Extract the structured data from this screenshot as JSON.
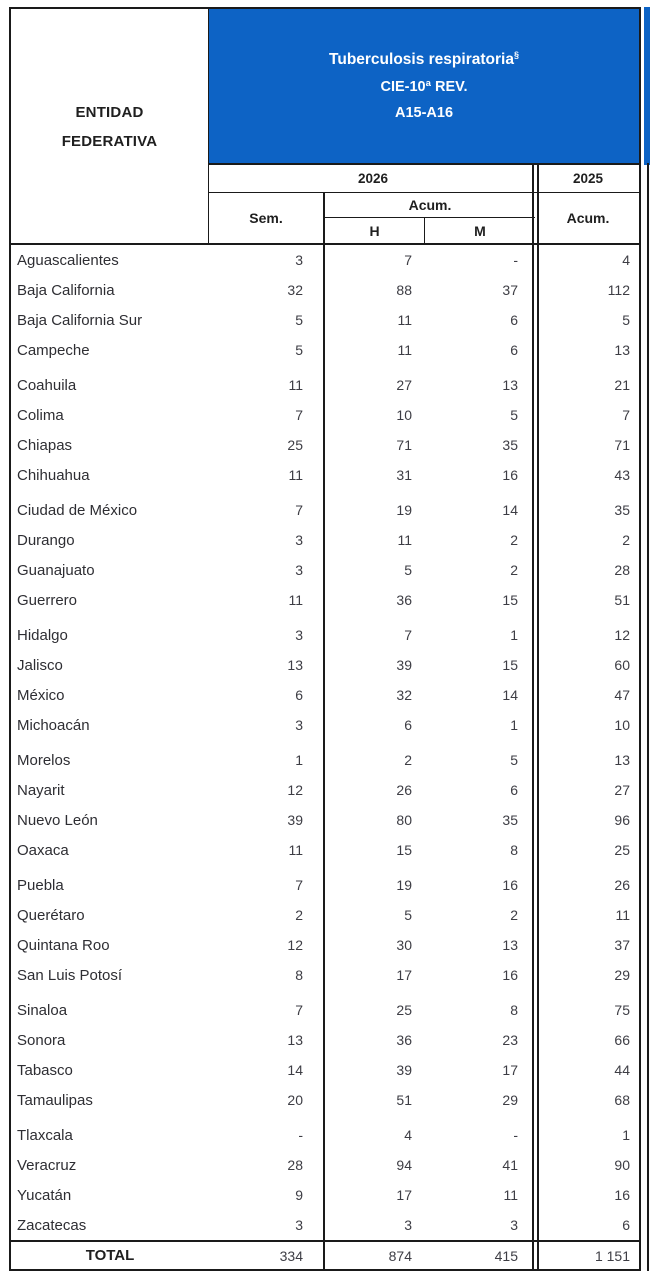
{
  "colors": {
    "header_blue": "#0d63c5",
    "border": "#1a1a1a",
    "data_text": "#3d3d44"
  },
  "header": {
    "entity_label_line1": "ENTIDAD",
    "entity_label_line2": "FEDERATIVA",
    "disease_title": "Tuberculosis respiratoria",
    "disease_footnote_mark": "§",
    "disease_subtitle_cie": "CIE-10ª REV.",
    "disease_subtitle_codes": "A15-A16",
    "year_current": "2026",
    "year_previous": "2025",
    "col_sem": "Sem.",
    "col_acum": "Acum.",
    "col_h": "H",
    "col_m": "M",
    "col_acum_prev": "Acum."
  },
  "table": {
    "rows": [
      {
        "name": "Aguascalientes",
        "sem": "3",
        "h": "7",
        "m": "-",
        "acum_prev": "4"
      },
      {
        "name": "Baja California",
        "sem": "32",
        "h": "88",
        "m": "37",
        "acum_prev": "112"
      },
      {
        "name": "Baja California Sur",
        "sem": "5",
        "h": "11",
        "m": "6",
        "acum_prev": "5"
      },
      {
        "name": "Campeche",
        "sem": "5",
        "h": "11",
        "m": "6",
        "acum_prev": "13"
      },
      {
        "name": "Coahuila",
        "sem": "11",
        "h": "27",
        "m": "13",
        "acum_prev": "21"
      },
      {
        "name": "Colima",
        "sem": "7",
        "h": "10",
        "m": "5",
        "acum_prev": "7"
      },
      {
        "name": "Chiapas",
        "sem": "25",
        "h": "71",
        "m": "35",
        "acum_prev": "71"
      },
      {
        "name": "Chihuahua",
        "sem": "11",
        "h": "31",
        "m": "16",
        "acum_prev": "43"
      },
      {
        "name": "Ciudad de México",
        "sem": "7",
        "h": "19",
        "m": "14",
        "acum_prev": "35"
      },
      {
        "name": "Durango",
        "sem": "3",
        "h": "11",
        "m": "2",
        "acum_prev": "2"
      },
      {
        "name": "Guanajuato",
        "sem": "3",
        "h": "5",
        "m": "2",
        "acum_prev": "28"
      },
      {
        "name": "Guerrero",
        "sem": "11",
        "h": "36",
        "m": "15",
        "acum_prev": "51"
      },
      {
        "name": "Hidalgo",
        "sem": "3",
        "h": "7",
        "m": "1",
        "acum_prev": "12"
      },
      {
        "name": "Jalisco",
        "sem": "13",
        "h": "39",
        "m": "15",
        "acum_prev": "60"
      },
      {
        "name": "México",
        "sem": "6",
        "h": "32",
        "m": "14",
        "acum_prev": "47"
      },
      {
        "name": "Michoacán",
        "sem": "3",
        "h": "6",
        "m": "1",
        "acum_prev": "10"
      },
      {
        "name": "Morelos",
        "sem": "1",
        "h": "2",
        "m": "5",
        "acum_prev": "13"
      },
      {
        "name": "Nayarit",
        "sem": "12",
        "h": "26",
        "m": "6",
        "acum_prev": "27"
      },
      {
        "name": "Nuevo León",
        "sem": "39",
        "h": "80",
        "m": "35",
        "acum_prev": "96"
      },
      {
        "name": "Oaxaca",
        "sem": "11",
        "h": "15",
        "m": "8",
        "acum_prev": "25"
      },
      {
        "name": "Puebla",
        "sem": "7",
        "h": "19",
        "m": "16",
        "acum_prev": "26"
      },
      {
        "name": "Querétaro",
        "sem": "2",
        "h": "5",
        "m": "2",
        "acum_prev": "11"
      },
      {
        "name": "Quintana Roo",
        "sem": "12",
        "h": "30",
        "m": "13",
        "acum_prev": "37"
      },
      {
        "name": "San Luis Potosí",
        "sem": "8",
        "h": "17",
        "m": "16",
        "acum_prev": "29"
      },
      {
        "name": "Sinaloa",
        "sem": "7",
        "h": "25",
        "m": "8",
        "acum_prev": "75"
      },
      {
        "name": "Sonora",
        "sem": "13",
        "h": "36",
        "m": "23",
        "acum_prev": "66"
      },
      {
        "name": "Tabasco",
        "sem": "14",
        "h": "39",
        "m": "17",
        "acum_prev": "44"
      },
      {
        "name": "Tamaulipas",
        "sem": "20",
        "h": "51",
        "m": "29",
        "acum_prev": "68"
      },
      {
        "name": "Tlaxcala",
        "sem": "-",
        "h": "4",
        "m": "-",
        "acum_prev": "1"
      },
      {
        "name": "Veracruz",
        "sem": "28",
        "h": "94",
        "m": "41",
        "acum_prev": "90"
      },
      {
        "name": "Yucatán",
        "sem": "9",
        "h": "17",
        "m": "11",
        "acum_prev": "16"
      },
      {
        "name": "Zacatecas",
        "sem": "3",
        "h": "3",
        "m": "3",
        "acum_prev": "6"
      }
    ],
    "group_size": 4,
    "total": {
      "label": "TOTAL",
      "sem": "334",
      "h": "874",
      "m": "415",
      "acum_prev": "1 151"
    }
  }
}
